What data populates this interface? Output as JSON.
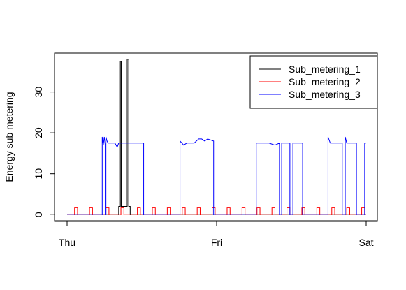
{
  "chart_data": {
    "type": "line",
    "title": "",
    "xlabel": "",
    "ylabel": "Energy sub metering",
    "x_range_days": [
      0,
      2
    ],
    "ylim": [
      -1.5,
      39.5
    ],
    "grid": false,
    "legend_position": "top-right",
    "x_ticks": [
      {
        "value": 0,
        "label": "Thu"
      },
      {
        "value": 1,
        "label": "Fri"
      },
      {
        "value": 2,
        "label": "Sat"
      }
    ],
    "y_ticks": [
      0,
      10,
      20,
      30
    ],
    "series": [
      {
        "name": "Sub_metering_1",
        "color": "#000000",
        "points": [
          [
            0.0,
            0
          ],
          [
            0.345,
            0
          ],
          [
            0.345,
            2
          ],
          [
            0.356,
            2
          ],
          [
            0.356,
            37.5
          ],
          [
            0.362,
            37.5
          ],
          [
            0.362,
            2
          ],
          [
            0.402,
            2
          ],
          [
            0.402,
            38
          ],
          [
            0.412,
            38
          ],
          [
            0.412,
            2
          ],
          [
            0.422,
            2
          ],
          [
            0.422,
            0
          ],
          [
            2.0,
            0
          ]
        ]
      },
      {
        "name": "Sub_metering_2",
        "color": "#ff0000",
        "points": [
          [
            0.0,
            0
          ],
          [
            0.05,
            0
          ],
          [
            0.05,
            1.8
          ],
          [
            0.07,
            1.8
          ],
          [
            0.07,
            0
          ],
          [
            0.15,
            0
          ],
          [
            0.15,
            1.8
          ],
          [
            0.17,
            1.8
          ],
          [
            0.17,
            0
          ],
          [
            0.26,
            0
          ],
          [
            0.26,
            1.8
          ],
          [
            0.28,
            1.8
          ],
          [
            0.28,
            0
          ],
          [
            0.36,
            0
          ],
          [
            0.36,
            1.8
          ],
          [
            0.38,
            1.8
          ],
          [
            0.38,
            0
          ],
          [
            0.47,
            0
          ],
          [
            0.47,
            1.8
          ],
          [
            0.49,
            1.8
          ],
          [
            0.49,
            0
          ],
          [
            0.57,
            0
          ],
          [
            0.57,
            1.8
          ],
          [
            0.59,
            1.8
          ],
          [
            0.59,
            0
          ],
          [
            0.67,
            0
          ],
          [
            0.67,
            1.8
          ],
          [
            0.69,
            1.8
          ],
          [
            0.69,
            0
          ],
          [
            0.77,
            0
          ],
          [
            0.77,
            1.8
          ],
          [
            0.79,
            1.8
          ],
          [
            0.79,
            0
          ],
          [
            0.87,
            0
          ],
          [
            0.87,
            1.8
          ],
          [
            0.89,
            1.8
          ],
          [
            0.89,
            0
          ],
          [
            0.97,
            0
          ],
          [
            0.97,
            1.8
          ],
          [
            0.99,
            1.8
          ],
          [
            0.99,
            0
          ],
          [
            1.07,
            0
          ],
          [
            1.07,
            1.8
          ],
          [
            1.09,
            1.8
          ],
          [
            1.09,
            0
          ],
          [
            1.17,
            0
          ],
          [
            1.17,
            1.8
          ],
          [
            1.19,
            1.8
          ],
          [
            1.19,
            0
          ],
          [
            1.27,
            0
          ],
          [
            1.27,
            1.8
          ],
          [
            1.29,
            1.8
          ],
          [
            1.29,
            0
          ],
          [
            1.37,
            0
          ],
          [
            1.37,
            1.8
          ],
          [
            1.39,
            1.8
          ],
          [
            1.39,
            0
          ],
          [
            1.47,
            0
          ],
          [
            1.47,
            1.8
          ],
          [
            1.49,
            1.8
          ],
          [
            1.49,
            0
          ],
          [
            1.57,
            0
          ],
          [
            1.57,
            1.8
          ],
          [
            1.59,
            1.8
          ],
          [
            1.59,
            0
          ],
          [
            1.67,
            0
          ],
          [
            1.67,
            1.8
          ],
          [
            1.69,
            1.8
          ],
          [
            1.69,
            0
          ],
          [
            1.77,
            0
          ],
          [
            1.77,
            1.8
          ],
          [
            1.79,
            1.8
          ],
          [
            1.79,
            0
          ],
          [
            1.87,
            0
          ],
          [
            1.87,
            1.8
          ],
          [
            1.89,
            1.8
          ],
          [
            1.89,
            0
          ],
          [
            1.97,
            0
          ],
          [
            1.97,
            1.8
          ],
          [
            1.99,
            1.8
          ],
          [
            1.99,
            0
          ],
          [
            2.0,
            0
          ]
        ]
      },
      {
        "name": "Sub_metering_3",
        "color": "#0000ff",
        "points": [
          [
            0.0,
            0
          ],
          [
            0.235,
            0
          ],
          [
            0.235,
            19
          ],
          [
            0.242,
            17
          ],
          [
            0.249,
            19
          ],
          [
            0.255,
            17
          ],
          [
            0.255,
            0
          ],
          [
            0.26,
            0
          ],
          [
            0.26,
            19
          ],
          [
            0.267,
            18
          ],
          [
            0.274,
            17.5
          ],
          [
            0.29,
            17.5
          ],
          [
            0.3,
            17.5
          ],
          [
            0.31,
            17.5
          ],
          [
            0.32,
            17.5
          ],
          [
            0.335,
            16.5
          ],
          [
            0.345,
            17.5
          ],
          [
            0.36,
            17.5
          ],
          [
            0.4,
            17.5
          ],
          [
            0.42,
            17.5
          ],
          [
            0.45,
            17.5
          ],
          [
            0.47,
            17.5
          ],
          [
            0.512,
            17.5
          ],
          [
            0.512,
            0
          ],
          [
            0.755,
            0
          ],
          [
            0.755,
            18
          ],
          [
            0.78,
            17
          ],
          [
            0.8,
            17.5
          ],
          [
            0.85,
            17.5
          ],
          [
            0.88,
            18.5
          ],
          [
            0.9,
            18.5
          ],
          [
            0.92,
            18
          ],
          [
            0.94,
            18.5
          ],
          [
            0.98,
            18
          ],
          [
            0.98,
            0
          ],
          [
            1.265,
            0
          ],
          [
            1.265,
            17.5
          ],
          [
            1.3,
            17.5
          ],
          [
            1.35,
            17.5
          ],
          [
            1.39,
            17
          ],
          [
            1.42,
            17.5
          ],
          [
            1.42,
            0
          ],
          [
            1.435,
            0
          ],
          [
            1.435,
            17.5
          ],
          [
            1.49,
            17.5
          ],
          [
            1.49,
            0
          ],
          [
            1.51,
            0
          ],
          [
            1.51,
            17.5
          ],
          [
            1.575,
            17.5
          ],
          [
            1.575,
            0
          ],
          [
            1.745,
            0
          ],
          [
            1.745,
            19
          ],
          [
            1.76,
            17.5
          ],
          [
            1.8,
            17.5
          ],
          [
            1.84,
            17.5
          ],
          [
            1.84,
            0
          ],
          [
            1.86,
            0
          ],
          [
            1.86,
            19
          ],
          [
            1.87,
            17.5
          ],
          [
            1.935,
            17.5
          ],
          [
            1.935,
            0
          ],
          [
            1.99,
            0
          ],
          [
            1.99,
            17.5
          ],
          [
            2.0,
            17.5
          ]
        ]
      }
    ]
  }
}
